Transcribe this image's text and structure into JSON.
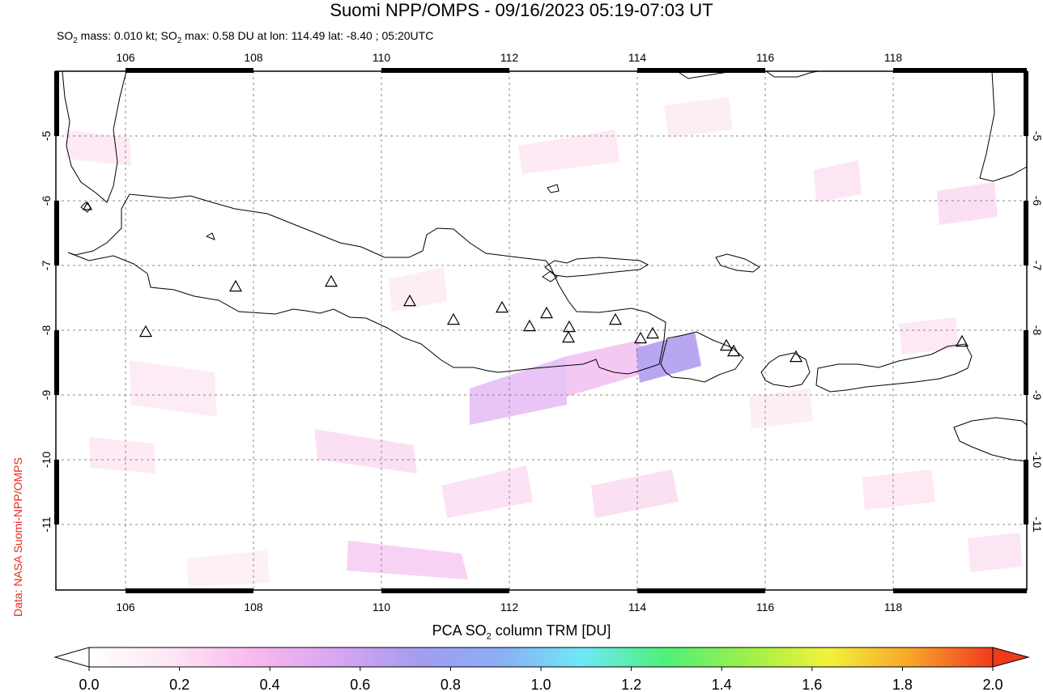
{
  "title": "Suomi NPP/OMPS - 09/16/2023 05:19-07:03 UT",
  "subtitle_pre": "SO",
  "subtitle_post": " mass: 0.010 kt; SO",
  "subtitle_post2": " max: 0.58 DU at lon: 114.49 lat: -8.40 ; 05:20UTC",
  "subscript": "2",
  "credit": "Data: NASA Suomi-NPP/OMPS",
  "colorbar": {
    "title_pre": "PCA SO",
    "title_post": " column TRM [DU]",
    "ticks": [
      "0.0",
      "0.2",
      "0.4",
      "0.6",
      "0.8",
      "1.0",
      "1.2",
      "1.4",
      "1.6",
      "1.8",
      "2.0"
    ],
    "colors": [
      "#ffffff",
      "#fde6f4",
      "#f9b8ee",
      "#d8a6f2",
      "#a49cf0",
      "#8aaef4",
      "#6fe8f6",
      "#4ef07a",
      "#9cf04a",
      "#f2f23a",
      "#f8a42a",
      "#f03a1e"
    ]
  },
  "map": {
    "lon_ticks": [
      "106",
      "108",
      "110",
      "112",
      "114",
      "116",
      "118"
    ],
    "lat_ticks": [
      "-5",
      "-6",
      "-7",
      "-8",
      "-9",
      "-10",
      "-11"
    ],
    "volcano_marker": "triangle-icon",
    "volcano_count": 18
  }
}
